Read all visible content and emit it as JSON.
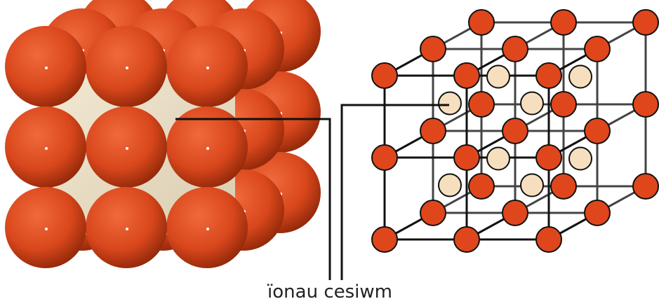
{
  "label": "ïonau cesiwm"
}
